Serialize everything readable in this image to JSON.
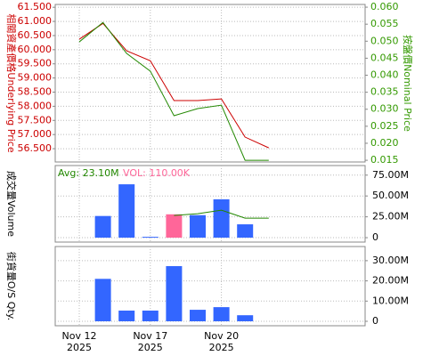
{
  "chart_data": [
    {
      "type": "line",
      "y_label": "相關資產價格Underlying Price",
      "y2_label": "按盤價Nominal Price",
      "ylim": [
        56.03,
        61.6
      ],
      "yticks": [
        {
          "value": 56.5,
          "label": "56.500"
        },
        {
          "value": 57,
          "label": "57.000"
        },
        {
          "value": 57.5,
          "label": "57.500"
        },
        {
          "value": 58,
          "label": "58.000"
        },
        {
          "value": 58.5,
          "label": "58.500"
        },
        {
          "value": 59,
          "label": "59.000"
        },
        {
          "value": 59.5,
          "label": "59.500"
        },
        {
          "value": 60,
          "label": "60.000"
        },
        {
          "value": 60.5,
          "label": "60.500"
        },
        {
          "value": 61,
          "label": "61.000"
        },
        {
          "value": 61.5,
          "label": "61.500"
        }
      ],
      "y2lim": [
        0.0145,
        0.0608
      ],
      "y2ticks": [
        {
          "value": 0.015,
          "label": "0.015"
        },
        {
          "value": 0.02,
          "label": "0.020"
        },
        {
          "value": 0.025,
          "label": "0.025"
        },
        {
          "value": 0.03,
          "label": "0.030"
        },
        {
          "value": 0.035,
          "label": "0.035"
        },
        {
          "value": 0.04,
          "label": "0.040"
        },
        {
          "value": 0.045,
          "label": "0.045"
        },
        {
          "value": 0.05,
          "label": "0.050"
        },
        {
          "value": 0.055,
          "label": "0.055"
        },
        {
          "value": 0.06,
          "label": "0.060"
        }
      ],
      "label_color": "#cc0000",
      "label2_color": "#339900",
      "grid": true,
      "series": [
        {
          "name": "Underlying Price",
          "color": "#cc0000",
          "values": [
            60.37,
            60.93,
            59.96,
            59.61,
            58.2,
            58.2,
            58.26,
            56.91,
            56.53
          ]
        },
        {
          "name": "Nominal Price",
          "color": "#228800",
          "axis": "y2",
          "values": [
            0.0498,
            0.0555,
            0.0464,
            0.0412,
            0.0281,
            0.0302,
            0.0312,
            0.015,
            0.015
          ]
        }
      ]
    },
    {
      "type": "bar",
      "y_label": "成交量Volume",
      "avg_label": "Avg: 23.10M",
      "vol_label": "VOL: 110.00K",
      "ylim": [
        -5300000,
        86500000
      ],
      "yticks": [
        0,
        {
          "value": 25000000,
          "label": "25.00M"
        },
        {
          "value": 50000000,
          "label": "50.00M"
        },
        {
          "value": 75000000,
          "label": "75.00M"
        }
      ],
      "grid": true,
      "series": [
        {
          "name": "Volume",
          "color": "#3366ff",
          "highlight_color": "#ff6699",
          "highlight_index": 4,
          "values": [
            null,
            26000000,
            64000000,
            1000000,
            28000000,
            27000000,
            46000000,
            16000000,
            null
          ]
        },
        {
          "name": "Avg",
          "type": "line",
          "color": "#228800",
          "values": [
            null,
            null,
            null,
            null,
            26600000,
            28700000,
            33000000,
            23400000,
            23400000
          ]
        }
      ]
    },
    {
      "type": "bar",
      "y_label": "街貨量O/S Qty.",
      "ylim": [
        -2200000,
        37000000
      ],
      "yticks": [
        0,
        {
          "value": 10000000,
          "label": "10.00M"
        },
        {
          "value": 20000000,
          "label": "20.00M"
        },
        {
          "value": 30000000,
          "label": "30.00M"
        }
      ],
      "grid": true,
      "categories": [
        "Nov 12\n2025",
        null,
        null,
        "Nov 17\n2025",
        null,
        null,
        "Nov 20\n2025",
        null,
        null
      ],
      "series": [
        {
          "name": "O/S Qty.",
          "color": "#3366ff",
          "values": [
            null,
            21000000,
            5300000,
            5300000,
            27300000,
            5700000,
            7000000,
            3000000,
            null
          ]
        }
      ]
    }
  ]
}
